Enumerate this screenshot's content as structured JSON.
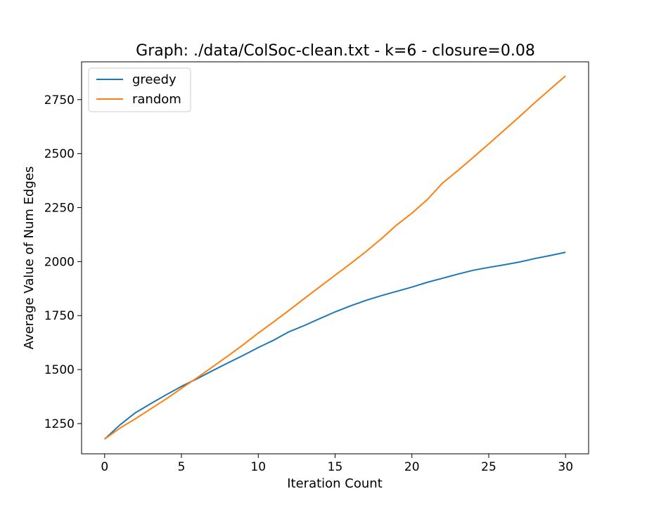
{
  "chart_data": {
    "type": "line",
    "title": "Graph: ./data/ColSoc-clean.txt - k=6 - closure=0.08",
    "xlabel": "Iteration Count",
    "ylabel": "Average Value of Num Edges",
    "xlim": [
      -1.5,
      31.5
    ],
    "ylim": [
      1110,
      2925
    ],
    "xticks": [
      0,
      5,
      10,
      15,
      20,
      25,
      30
    ],
    "yticks": [
      1250,
      1500,
      1750,
      2000,
      2250,
      2500,
      2750
    ],
    "grid": false,
    "legend_position": "top-left",
    "x": [
      0,
      1,
      2,
      3,
      4,
      5,
      6,
      7,
      8,
      9,
      10,
      11,
      12,
      13,
      14,
      15,
      16,
      17,
      18,
      19,
      20,
      21,
      22,
      23,
      24,
      25,
      26,
      27,
      28,
      29,
      30
    ],
    "series": [
      {
        "name": "greedy",
        "color": "#1f77b4",
        "values": [
          1178,
          1244,
          1300,
          1342,
          1383,
          1422,
          1457,
          1494,
          1530,
          1565,
          1602,
          1636,
          1675,
          1704,
          1736,
          1767,
          1795,
          1820,
          1842,
          1862,
          1882,
          1904,
          1923,
          1942,
          1960,
          1973,
          1985,
          1998,
          2014,
          2028,
          2043
        ]
      },
      {
        "name": "random",
        "color": "#ff7f0e",
        "values": [
          1178,
          1229,
          1272,
          1318,
          1364,
          1413,
          1461,
          1511,
          1562,
          1614,
          1669,
          1721,
          1774,
          1829,
          1883,
          1937,
          1990,
          2046,
          2105,
          2169,
          2224,
          2287,
          2364,
          2422,
          2483,
          2545,
          2608,
          2671,
          2736,
          2798,
          2860
        ]
      }
    ]
  }
}
